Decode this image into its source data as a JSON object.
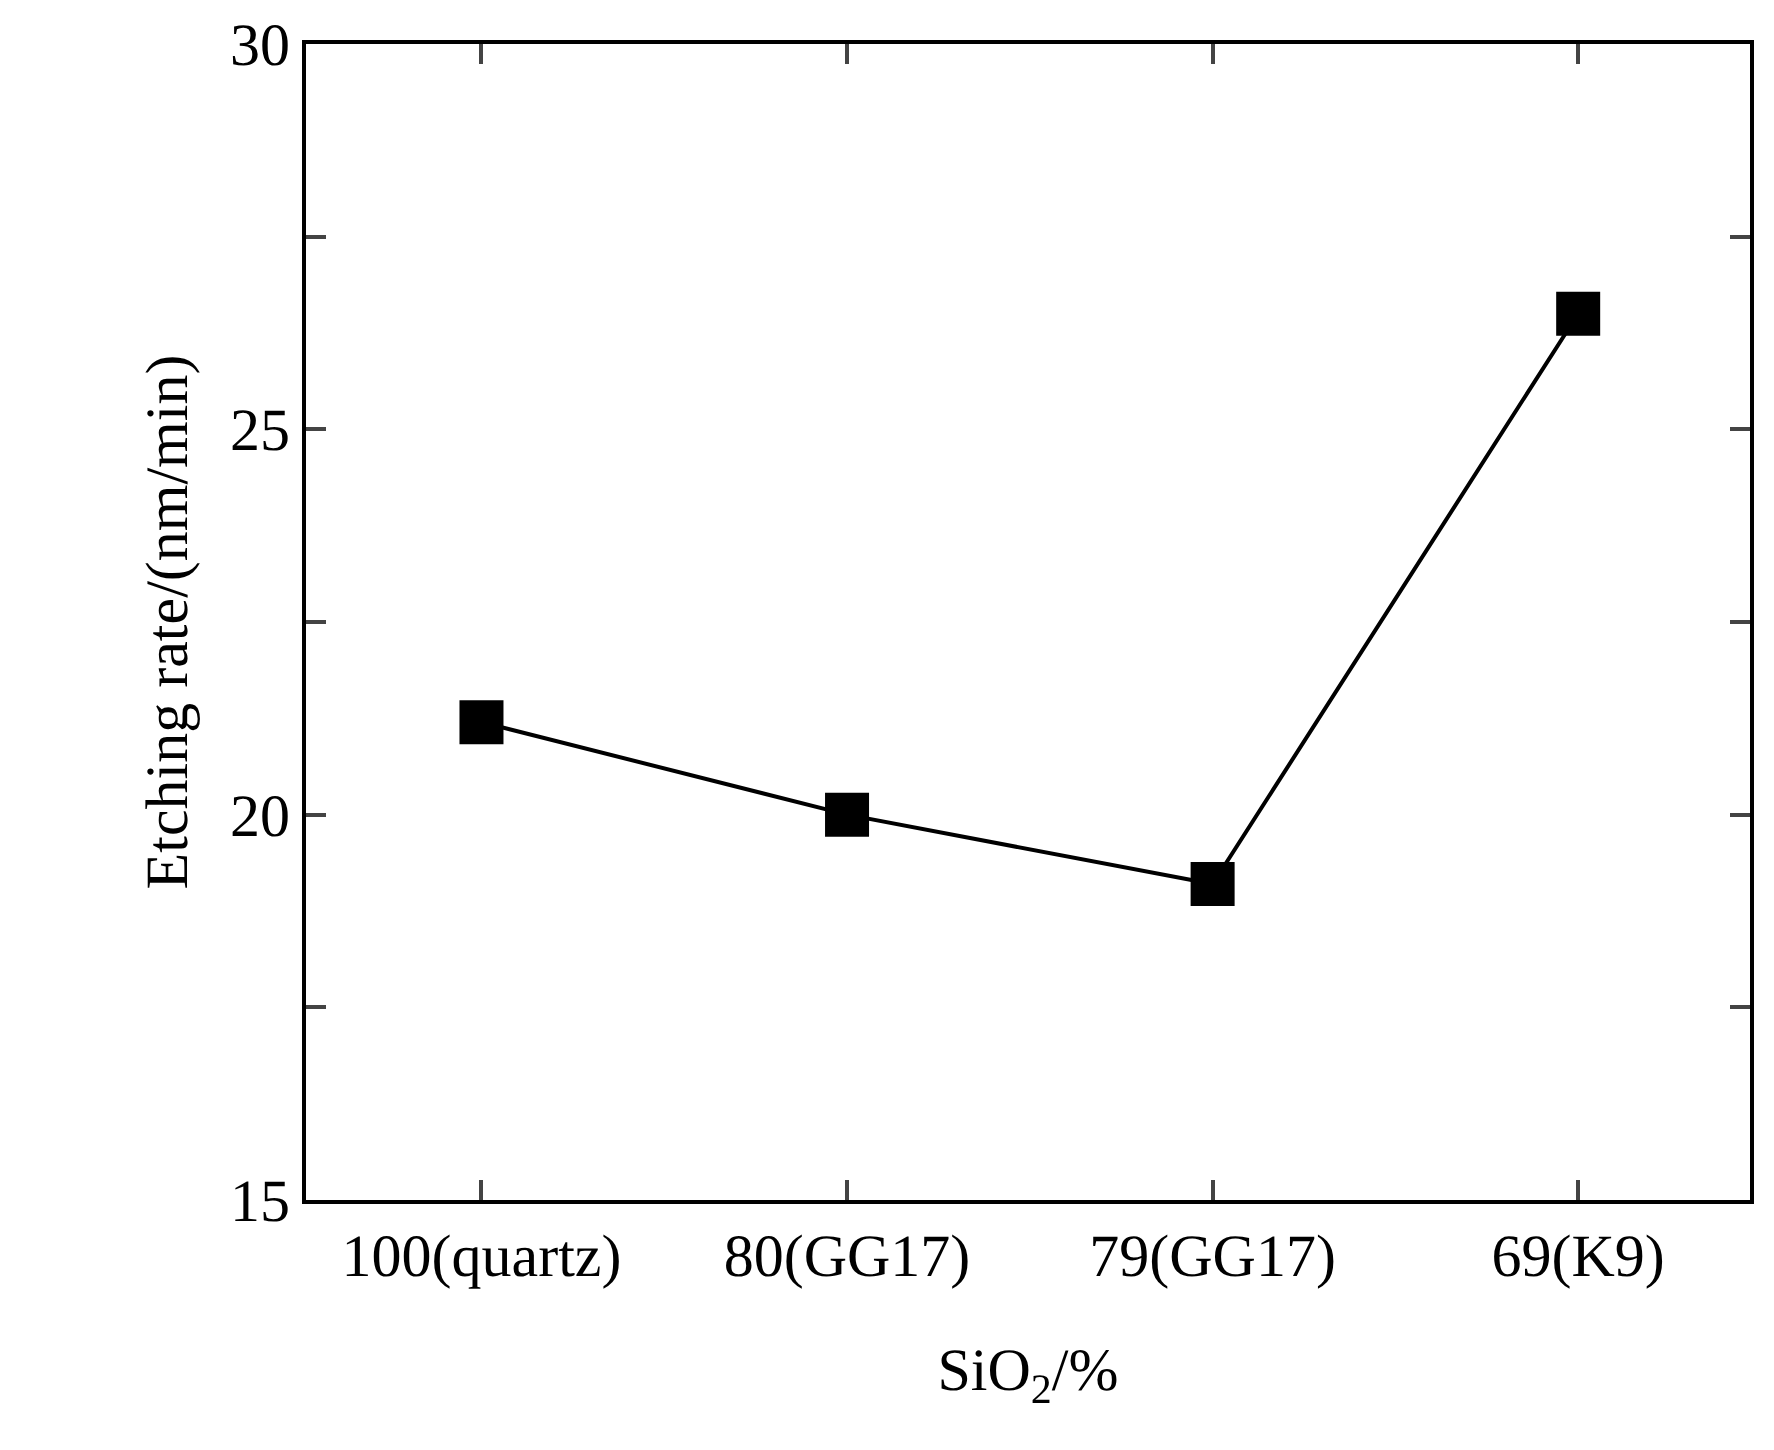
{
  "chart_data": {
    "type": "line",
    "xlabel": "SiO$_{2}$/%",
    "ylabel": "Etching rate/(nm/min)",
    "categories": [
      "100(quartz)",
      "80(GG17)",
      "79(GG17)",
      "69(K9)"
    ],
    "series": [
      {
        "color": "#000000",
        "values": [
          21.2,
          20.0,
          19.1,
          26.5
        ]
      }
    ],
    "ylim": [
      15,
      30
    ],
    "yticks": [
      15,
      {
        "value": 17.5,
        "label": null
      },
      20,
      {
        "value": 22.5,
        "label": null
      },
      25,
      {
        "value": 27.5,
        "label": null
      },
      30
    ],
    "marker": "square",
    "line_style": "solid",
    "grid": false
  }
}
